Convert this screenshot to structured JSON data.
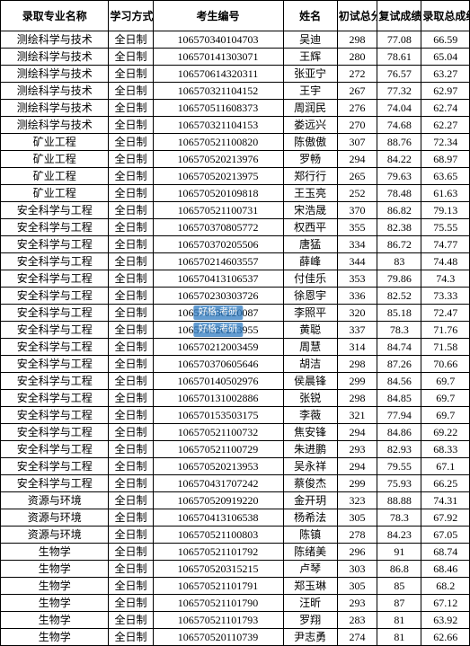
{
  "table": {
    "columns": [
      "录取专业名称",
      "学习方式",
      "考生编号",
      "姓名",
      "初试总分",
      "复试成绩",
      "录取总成绩"
    ],
    "column_classes": [
      "col-major",
      "col-mode",
      "col-id",
      "col-name",
      "col-score1",
      "col-score2",
      "col-total"
    ],
    "rows": [
      [
        "测绘科学与技术",
        "全日制",
        "106570340104703",
        "吴迪",
        "298",
        "77.08",
        "66.59"
      ],
      [
        "测绘科学与技术",
        "全日制",
        "106570141303071",
        "王辉",
        "280",
        "78.61",
        "65.04"
      ],
      [
        "测绘科学与技术",
        "全日制",
        "106570614320311",
        "张亚宁",
        "272",
        "76.57",
        "63.27"
      ],
      [
        "测绘科学与技术",
        "全日制",
        "106570321104152",
        "王宇",
        "267",
        "77.32",
        "62.97"
      ],
      [
        "测绘科学与技术",
        "全日制",
        "106570511608373",
        "周润民",
        "276",
        "74.04",
        "62.74"
      ],
      [
        "测绘科学与技术",
        "全日制",
        "106570321104153",
        "娄远兴",
        "270",
        "74.68",
        "62.27"
      ],
      [
        "矿业工程",
        "全日制",
        "106570521100820",
        "陈傲傲",
        "307",
        "88.76",
        "72.34"
      ],
      [
        "矿业工程",
        "全日制",
        "106570520213976",
        "罗畅",
        "294",
        "84.22",
        "68.97"
      ],
      [
        "矿业工程",
        "全日制",
        "106570520213975",
        "郑行行",
        "265",
        "79.63",
        "63.65"
      ],
      [
        "矿业工程",
        "全日制",
        "106570520109818",
        "王玉亮",
        "252",
        "78.48",
        "61.63"
      ],
      [
        "安全科学与工程",
        "全日制",
        "106570521100731",
        "宋浩晟",
        "370",
        "86.82",
        "79.13"
      ],
      [
        "安全科学与工程",
        "全日制",
        "106570370805772",
        "权西平",
        "355",
        "82.38",
        "75.55"
      ],
      [
        "安全科学与工程",
        "全日制",
        "106570370205506",
        "唐猛",
        "334",
        "86.72",
        "74.77"
      ],
      [
        "安全科学与工程",
        "全日制",
        "106570214603557",
        "薛峰",
        "344",
        "83",
        "74.48"
      ],
      [
        "安全科学与工程",
        "全日制",
        "106570413106537",
        "付佳乐",
        "353",
        "79.86",
        "74.3"
      ],
      [
        "安全科学与工程",
        "全日制",
        "106570230303726",
        "徐恩宇",
        "336",
        "82.52",
        "73.33"
      ],
      [
        "安全科学与工程",
        "全日制",
        "106570530220087",
        "李照平",
        "320",
        "85.18",
        "72.47"
      ],
      [
        "安全科学与工程",
        "全日制",
        "106570520213955",
        "黄聪",
        "337",
        "78.3",
        "71.76"
      ],
      [
        "安全科学与工程",
        "全日制",
        "106570212003459",
        "周慧",
        "314",
        "84.74",
        "71.58"
      ],
      [
        "安全科学与工程",
        "全日制",
        "106570370605646",
        "胡洁",
        "298",
        "87.26",
        "70.66"
      ],
      [
        "安全科学与工程",
        "全日制",
        "106570140502976",
        "侯晨锋",
        "299",
        "84.56",
        "69.7"
      ],
      [
        "安全科学与工程",
        "全日制",
        "106570131002886",
        "张锐",
        "298",
        "84.85",
        "69.7"
      ],
      [
        "安全科学与工程",
        "全日制",
        "106570153503175",
        "李薇",
        "321",
        "77.94",
        "69.7"
      ],
      [
        "安全科学与工程",
        "全日制",
        "106570521100732",
        "焦安锋",
        "294",
        "84.86",
        "69.22"
      ],
      [
        "安全科学与工程",
        "全日制",
        "106570521100729",
        "朱进鹏",
        "293",
        "82.93",
        "68.33"
      ],
      [
        "安全科学与工程",
        "全日制",
        "106570520213953",
        "吴永祥",
        "294",
        "79.55",
        "67.1"
      ],
      [
        "安全科学与工程",
        "全日制",
        "106570431707242",
        "蔡俊杰",
        "299",
        "75.93",
        "66.25"
      ],
      [
        "资源与环境",
        "全日制",
        "106570520919220",
        "金开玥",
        "323",
        "88.88",
        "74.31"
      ],
      [
        "资源与环境",
        "全日制",
        "106570413106538",
        "杨希法",
        "305",
        "78.3",
        "67.92"
      ],
      [
        "资源与环境",
        "全日制",
        "106570521100803",
        "陈镇",
        "278",
        "84.23",
        "67.05"
      ],
      [
        "生物学",
        "全日制",
        "106570521101792",
        "陈绪美",
        "296",
        "91",
        "68.74"
      ],
      [
        "生物学",
        "全日制",
        "106570520315215",
        "卢琴",
        "303",
        "86.8",
        "68.46"
      ],
      [
        "生物学",
        "全日制",
        "106570521101791",
        "郑玉琳",
        "305",
        "85",
        "68.2"
      ],
      [
        "生物学",
        "全日制",
        "106570521101790",
        "汪昕",
        "293",
        "87",
        "67.12"
      ],
      [
        "生物学",
        "全日制",
        "106570521101793",
        "罗翔",
        "283",
        "81",
        "63.92"
      ],
      [
        "生物学",
        "全日制",
        "106570520110739",
        "尹志勇",
        "274",
        "81",
        "62.66"
      ]
    ],
    "border_color": "#000000",
    "background_color": "#ffffff",
    "header_fontsize": 12,
    "cell_fontsize": 12,
    "font_family": "SimSun",
    "watermark_rows": [
      16,
      17
    ],
    "watermark_text": "好格·考研",
    "watermark_bg": "#2f7cc2",
    "watermark_color": "#ffffff"
  }
}
